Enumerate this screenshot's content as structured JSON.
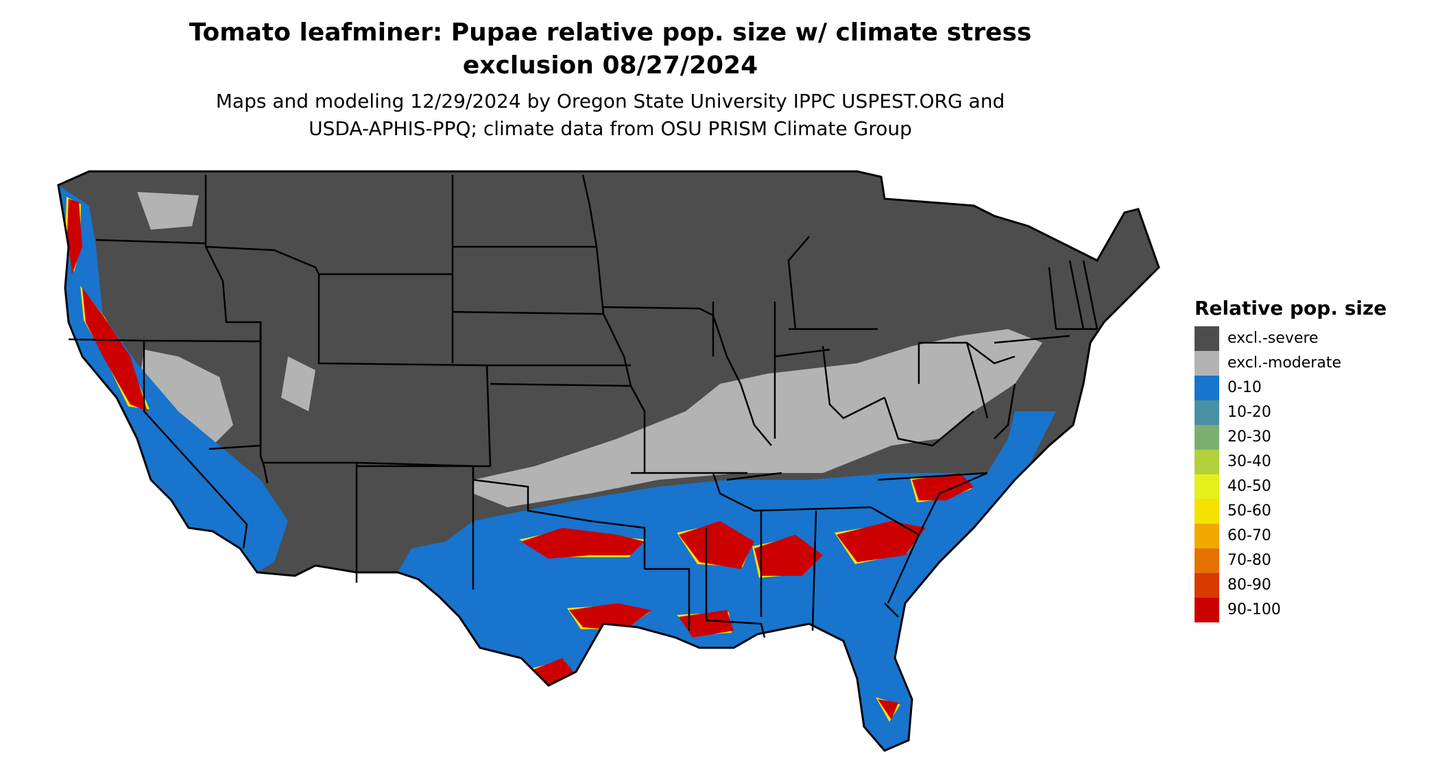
{
  "title_line1": "Tomato leafminer: Pupae relative pop. size w/ climate stress",
  "title_line2": "exclusion 08/27/2024",
  "subtitle_line1": "Maps and modeling 12/29/2024 by Oregon State University IPPC USPEST.ORG and",
  "subtitle_line2": "USDA-APHIS-PPQ; climate data from OSU PRISM Climate Group",
  "legend": {
    "title": "Relative pop. size",
    "items": [
      {
        "label": "excl.-severe",
        "color": "#4d4d4d"
      },
      {
        "label": "excl.-moderate",
        "color": "#b3b3b3"
      },
      {
        "label": "0-10",
        "color": "#1874cd"
      },
      {
        "label": "10-20",
        "color": "#4a90a4"
      },
      {
        "label": "20-30",
        "color": "#7cae72"
      },
      {
        "label": "30-40",
        "color": "#b3d13b"
      },
      {
        "label": "40-50",
        "color": "#e6ee1c"
      },
      {
        "label": "50-60",
        "color": "#f5e200"
      },
      {
        "label": "60-70",
        "color": "#efa900"
      },
      {
        "label": "70-80",
        "color": "#e57200"
      },
      {
        "label": "80-90",
        "color": "#d83a00"
      },
      {
        "label": "90-100",
        "color": "#cd0000"
      }
    ]
  }
}
